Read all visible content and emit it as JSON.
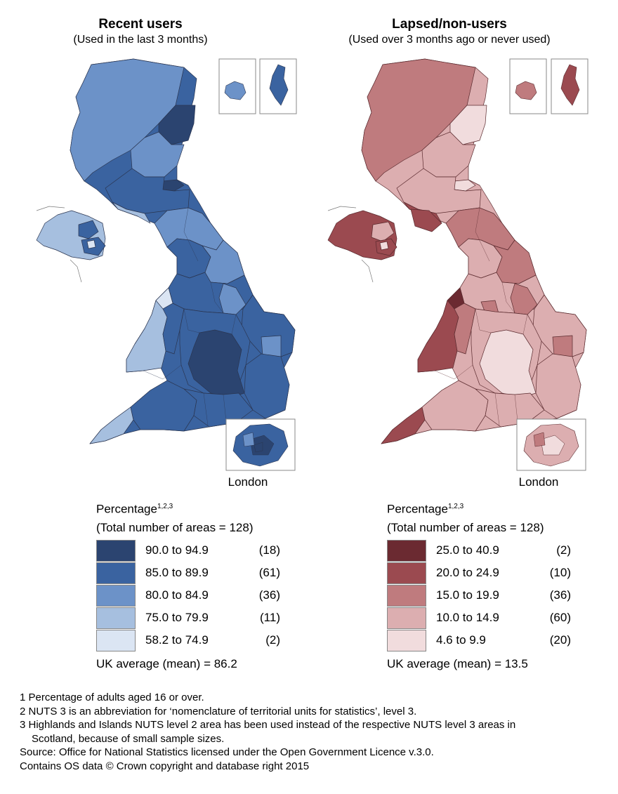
{
  "maps": [
    {
      "id": "recent",
      "title": "Recent users",
      "subtitle": "(Used in the last 3 months)",
      "inset_label": "London",
      "legend_heading": "Percentage",
      "legend_superscript": "1,2,3",
      "legend_total": "(Total number of areas = 128)",
      "legend": [
        {
          "range": "90.0 to 94.9",
          "count": "(18)",
          "color": "#2b4470"
        },
        {
          "range": "85.0 to 89.9",
          "count": "(61)",
          "color": "#3a63a0"
        },
        {
          "range": "80.0 to 84.9",
          "count": "(36)",
          "color": "#6c92c8"
        },
        {
          "range": "75.0 to 79.9",
          "count": "(11)",
          "color": "#a6bfdf"
        },
        {
          "range": "58.2 to 74.9",
          "count": "(2)",
          "color": "#dbe5f3"
        }
      ],
      "average": "UK average (mean) = 86.2"
    },
    {
      "id": "lapsed",
      "title": "Lapsed/non-users",
      "subtitle": "(Used over 3 months ago or never used)",
      "inset_label": "London",
      "legend_heading": "Percentage",
      "legend_superscript": "1,2,3",
      "legend_total": "(Total number of areas = 128)",
      "legend": [
        {
          "range": "25.0 to 40.9",
          "count": "(2)",
          "color": "#6b2a31"
        },
        {
          "range": "20.0 to 24.9",
          "count": "(10)",
          "color": "#9b4a50"
        },
        {
          "range": "15.0 to 19.9",
          "count": "(36)",
          "color": "#bf7b7e"
        },
        {
          "range": "10.0 to 14.9",
          "count": "(60)",
          "color": "#dcaeb0"
        },
        {
          "range": "4.6 to 9.9",
          "count": "(20)",
          "color": "#f1dcdd"
        }
      ],
      "average": "UK average (mean) = 13.5"
    }
  ],
  "notes": [
    "1 Percentage of adults aged 16 or over.",
    "2 NUTS 3 is an abbreviation for ‘nomenclature of territorial units for statistics’, level 3.",
    "3 Highlands and Islands NUTS level 2 area has been used instead of the respective NUTS level 3 areas in",
    "Scotland, because of small sample sizes.",
    "Source: Office for National Statistics licensed under the Open Government Licence v.3.0.",
    "Contains OS data © Crown copyright and database right 2015"
  ]
}
